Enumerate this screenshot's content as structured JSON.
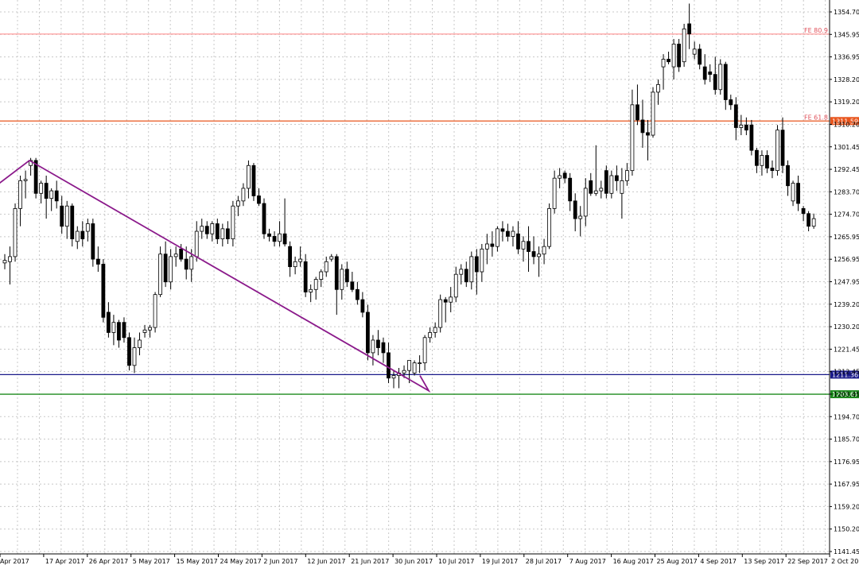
{
  "chart_data": {
    "type": "candlestick",
    "ylim": [
      1141.45,
      1358.0
    ],
    "grid": true,
    "y_ticks": [
      "1354.70",
      "1345.95",
      "1336.95",
      "1328.20",
      "1319.20",
      "1310.20",
      "1301.45",
      "1292.45",
      "1283.70",
      "1274.70",
      "1265.95",
      "1256.95",
      "1247.95",
      "1239.20",
      "1230.20",
      "1221.45",
      "1212.45",
      "1203.45",
      "1194.70",
      "1185.70",
      "1176.95",
      "1167.95",
      "1159.20",
      "1150.20",
      "1141.45"
    ],
    "x_labels": [
      "Apr 2017",
      "17 Apr 2017",
      "26 Apr 2017",
      "5 May 2017",
      "15 May 2017",
      "24 May 2017",
      "2 Jun 2017",
      "12 Jun 2017",
      "21 Jun 2017",
      "30 Jun 2017",
      "10 Jul 2017",
      "19 Jul 2017",
      "28 Jul 2017",
      "7 Aug 2017",
      "16 Aug 2017",
      "25 Aug 2017",
      "4 Sep 2017",
      "13 Sep 2017",
      "22 Sep 2017",
      "2 Oct 2017"
    ],
    "candles": [
      [
        1255.5,
        1259.0,
        1253.0,
        1256.5
      ],
      [
        1256.0,
        1262.0,
        1247.0,
        1258.0
      ],
      [
        1258.0,
        1279.0,
        1256.0,
        1277.0
      ],
      [
        1277.0,
        1290.0,
        1270.0,
        1288.0
      ],
      [
        1288.0,
        1292.0,
        1281.0,
        1288.5
      ],
      [
        1294.0,
        1297.0,
        1290.0,
        1296.0
      ],
      [
        1296.0,
        1297.0,
        1281.0,
        1283.0
      ],
      [
        1283.0,
        1288.0,
        1279.0,
        1287.0
      ],
      [
        1287.0,
        1290.0,
        1273.0,
        1281.0
      ],
      [
        1281.0,
        1285.0,
        1276.0,
        1284.0
      ],
      [
        1284.0,
        1288.0,
        1277.0,
        1280.0
      ],
      [
        1278.0,
        1282.0,
        1267.0,
        1270.0
      ],
      [
        1270.0,
        1280.0,
        1265.0,
        1278.0
      ],
      [
        1278.0,
        1279.0,
        1262.0,
        1265.0
      ],
      [
        1264.0,
        1270.0,
        1261.0,
        1268.0
      ],
      [
        1268.0,
        1272.0,
        1262.0,
        1265.0
      ],
      [
        1268.0,
        1273.0,
        1264.0,
        1271.0
      ],
      [
        1271.0,
        1273.0,
        1254.0,
        1257.0
      ],
      [
        1257.0,
        1262.0,
        1252.0,
        1255.0
      ],
      [
        1255.0,
        1257.0,
        1232.0,
        1234.0
      ],
      [
        1236.0,
        1240.0,
        1226.0,
        1228.0
      ],
      [
        1228.0,
        1235.0,
        1223.0,
        1232.0
      ],
      [
        1232.0,
        1233.0,
        1222.0,
        1225.0
      ],
      [
        1232.0,
        1234.0,
        1224.0,
        1226.0
      ],
      [
        1226.0,
        1228.0,
        1213.0,
        1215.0
      ],
      [
        1215.0,
        1226.0,
        1212.0,
        1222.0
      ],
      [
        1222.0,
        1228.0,
        1219.0,
        1225.0
      ],
      [
        1228.0,
        1231.0,
        1226.0,
        1229.0
      ],
      [
        1229.0,
        1231.0,
        1226.0,
        1230.0
      ],
      [
        1230.0,
        1244.0,
        1228.0,
        1243.0
      ],
      [
        1243.0,
        1262.0,
        1242.0,
        1259.0
      ],
      [
        1259.0,
        1264.0,
        1246.0,
        1248.0
      ],
      [
        1248.0,
        1261.0,
        1245.0,
        1258.0
      ],
      [
        1258.0,
        1262.0,
        1254.0,
        1259.0
      ],
      [
        1261.0,
        1263.0,
        1256.0,
        1257.0
      ],
      [
        1257.0,
        1262.0,
        1249.0,
        1253.0
      ],
      [
        1253.0,
        1261.0,
        1248.0,
        1258.0
      ],
      [
        1258.0,
        1272.0,
        1256.0,
        1268.0
      ],
      [
        1268.0,
        1273.0,
        1265.0,
        1270.0
      ],
      [
        1270.0,
        1272.0,
        1265.0,
        1267.0
      ],
      [
        1267.0,
        1272.0,
        1264.0,
        1271.0
      ],
      [
        1271.0,
        1273.0,
        1263.0,
        1265.0
      ],
      [
        1265.0,
        1271.0,
        1262.0,
        1269.0
      ],
      [
        1269.0,
        1272.0,
        1263.0,
        1265.0
      ],
      [
        1265.0,
        1280.0,
        1262.0,
        1278.0
      ],
      [
        1278.0,
        1282.0,
        1274.0,
        1280.0
      ],
      [
        1280.0,
        1287.0,
        1278.0,
        1285.0
      ],
      [
        1285.0,
        1296.0,
        1281.0,
        1294.0
      ],
      [
        1294.0,
        1295.0,
        1280.0,
        1282.0
      ],
      [
        1282.0,
        1285.0,
        1278.0,
        1279.0
      ],
      [
        1279.0,
        1281.0,
        1265.0,
        1267.0
      ],
      [
        1267.0,
        1269.0,
        1264.0,
        1266.0
      ],
      [
        1266.0,
        1268.0,
        1262.0,
        1264.0
      ],
      [
        1264.0,
        1272.0,
        1262.0,
        1267.0
      ],
      [
        1267.0,
        1281.0,
        1262.0,
        1263.0
      ],
      [
        1262.0,
        1264.0,
        1250.0,
        1254.0
      ],
      [
        1254.0,
        1258.0,
        1251.0,
        1256.0
      ],
      [
        1256.0,
        1262.0,
        1254.0,
        1257.0
      ],
      [
        1256.0,
        1259.0,
        1242.0,
        1244.0
      ],
      [
        1244.0,
        1247.0,
        1240.0,
        1245.0
      ],
      [
        1245.0,
        1250.0,
        1241.0,
        1249.0
      ],
      [
        1249.0,
        1253.0,
        1246.0,
        1252.0
      ],
      [
        1252.0,
        1258.0,
        1250.0,
        1256.0
      ],
      [
        1257.0,
        1259.0,
        1256.0,
        1258.0
      ],
      [
        1258.0,
        1259.0,
        1235.0,
        1245.0
      ],
      [
        1245.0,
        1255.0,
        1241.0,
        1253.0
      ],
      [
        1253.0,
        1256.0,
        1246.0,
        1248.0
      ],
      [
        1248.0,
        1252.0,
        1244.0,
        1245.0
      ],
      [
        1245.0,
        1248.0,
        1239.0,
        1241.0
      ],
      [
        1241.0,
        1244.0,
        1234.0,
        1236.0
      ],
      [
        1236.0,
        1239.0,
        1217.0,
        1220.0
      ],
      [
        1220.0,
        1227.0,
        1215.0,
        1225.0
      ],
      [
        1225.0,
        1229.0,
        1219.0,
        1222.0
      ],
      [
        1224.0,
        1226.0,
        1216.0,
        1220.0
      ],
      [
        1220.0,
        1224.0,
        1208.0,
        1210.0
      ],
      [
        1210.0,
        1213.0,
        1206.0,
        1211.0
      ],
      [
        1211.0,
        1214.0,
        1206.0,
        1212.0
      ],
      [
        1212.0,
        1215.0,
        1210.0,
        1213.0
      ],
      [
        1213.0,
        1217.0,
        1208.0,
        1217.0
      ],
      [
        1212.0,
        1217.0,
        1211.0,
        1216.0
      ],
      [
        1216.0,
        1219.0,
        1212.0,
        1216.0
      ],
      [
        1216.0,
        1227.0,
        1213.0,
        1226.0
      ],
      [
        1226.0,
        1230.0,
        1224.0,
        1228.0
      ],
      [
        1228.0,
        1232.0,
        1226.0,
        1230.0
      ],
      [
        1230.0,
        1243.0,
        1228.0,
        1241.0
      ],
      [
        1241.0,
        1242.0,
        1232.0,
        1240.0
      ],
      [
        1240.0,
        1246.0,
        1236.0,
        1242.0
      ],
      [
        1242.0,
        1254.0,
        1240.0,
        1251.0
      ],
      [
        1251.0,
        1255.0,
        1247.0,
        1253.0
      ],
      [
        1253.0,
        1256.0,
        1246.0,
        1248.0
      ],
      [
        1248.0,
        1260.0,
        1245.0,
        1258.0
      ],
      [
        1258.0,
        1261.0,
        1243.0,
        1252.0
      ],
      [
        1252.0,
        1263.0,
        1248.0,
        1261.0
      ],
      [
        1261.0,
        1267.0,
        1255.0,
        1263.0
      ],
      [
        1263.0,
        1268.0,
        1258.0,
        1262.0
      ],
      [
        1262.0,
        1270.0,
        1260.0,
        1269.0
      ],
      [
        1269.0,
        1272.0,
        1264.0,
        1268.0
      ],
      [
        1268.0,
        1271.0,
        1264.0,
        1266.0
      ],
      [
        1266.0,
        1270.0,
        1262.0,
        1268.0
      ],
      [
        1267.0,
        1272.0,
        1259.0,
        1261.0
      ],
      [
        1261.0,
        1266.0,
        1256.0,
        1264.0
      ],
      [
        1264.0,
        1270.0,
        1252.0,
        1260.0
      ],
      [
        1260.0,
        1266.0,
        1255.0,
        1258.0
      ],
      [
        1258.0,
        1262.0,
        1250.0,
        1259.0
      ],
      [
        1259.0,
        1265.0,
        1255.0,
        1262.0
      ],
      [
        1262.0,
        1279.0,
        1261.0,
        1277.0
      ],
      [
        1277.0,
        1292.0,
        1275.0,
        1289.0
      ],
      [
        1289.0,
        1293.0,
        1285.0,
        1290.0
      ],
      [
        1291.0,
        1292.0,
        1287.0,
        1289.0
      ],
      [
        1289.0,
        1291.0,
        1276.0,
        1280.0
      ],
      [
        1280.0,
        1283.0,
        1268.0,
        1273.0
      ],
      [
        1273.0,
        1278.0,
        1266.0,
        1274.0
      ],
      [
        1274.0,
        1289.0,
        1270.0,
        1285.0
      ],
      [
        1288.0,
        1291.0,
        1282.0,
        1283.0
      ],
      [
        1283.0,
        1302.0,
        1282.0,
        1284.0
      ],
      [
        1284.0,
        1288.0,
        1281.0,
        1285.0
      ],
      [
        1292.0,
        1294.0,
        1281.0,
        1283.0
      ],
      [
        1283.0,
        1292.0,
        1281.0,
        1290.0
      ],
      [
        1290.0,
        1294.0,
        1284.0,
        1288.0
      ],
      [
        1283.0,
        1293.0,
        1273.0,
        1288.0
      ],
      [
        1288.0,
        1295.0,
        1286.0,
        1292.0
      ],
      [
        1292.0,
        1324.0,
        1290.0,
        1318.0
      ],
      [
        1318.0,
        1326.0,
        1310.0,
        1312.0
      ],
      [
        1312.0,
        1320.0,
        1301.0,
        1307.0
      ],
      [
        1307.0,
        1312.0,
        1296.0,
        1306.0
      ],
      [
        1306.0,
        1325.0,
        1305.0,
        1323.0
      ],
      [
        1323.0,
        1328.0,
        1318.0,
        1326.0
      ],
      [
        1333.0,
        1338.0,
        1324.0,
        1336.0
      ],
      [
        1336.0,
        1339.0,
        1334.0,
        1335.0
      ],
      [
        1333.0,
        1344.0,
        1328.0,
        1342.0
      ],
      [
        1342.0,
        1344.0,
        1331.0,
        1333.0
      ],
      [
        1335.0,
        1350.0,
        1333.0,
        1348.0
      ],
      [
        1350.0,
        1358.0,
        1340.0,
        1346.0
      ],
      [
        1338.0,
        1343.0,
        1336.0,
        1340.0
      ],
      [
        1340.0,
        1342.0,
        1332.0,
        1334.0
      ],
      [
        1333.0,
        1338.0,
        1326.0,
        1328.0
      ],
      [
        1331.0,
        1334.0,
        1327.0,
        1330.0
      ],
      [
        1330.0,
        1337.0,
        1322.0,
        1324.0
      ],
      [
        1324.0,
        1336.0,
        1322.0,
        1334.0
      ],
      [
        1334.0,
        1335.0,
        1316.0,
        1320.0
      ],
      [
        1320.0,
        1322.0,
        1316.0,
        1318.0
      ],
      [
        1318.0,
        1321.0,
        1304.0,
        1309.0
      ],
      [
        1309.0,
        1314.0,
        1306.0,
        1310.0
      ],
      [
        1310.0,
        1313.0,
        1306.0,
        1308.0
      ],
      [
        1310.0,
        1312.0,
        1298.0,
        1300.0
      ],
      [
        1300.0,
        1301.0,
        1291.0,
        1294.0
      ],
      [
        1294.0,
        1300.0,
        1290.0,
        1298.0
      ],
      [
        1298.0,
        1300.0,
        1291.0,
        1293.0
      ],
      [
        1293.0,
        1296.0,
        1289.0,
        1292.0
      ],
      [
        1292.0,
        1310.0,
        1290.0,
        1308.0
      ],
      [
        1308.0,
        1313.0,
        1291.0,
        1294.0
      ],
      [
        1294.0,
        1296.0,
        1282.0,
        1286.0
      ],
      [
        1280.0,
        1288.0,
        1278.0,
        1287.0
      ],
      [
        1287.0,
        1290.0,
        1276.0,
        1279.0
      ],
      [
        1277.0,
        1278.0,
        1272.0,
        1275.0
      ],
      [
        1275.0,
        1276.0,
        1268.0,
        1270.0
      ],
      [
        1270.0,
        1275.0,
        1269.0,
        1273.0
      ]
    ],
    "horizontal_lines": [
      {
        "label": "FE 80.9",
        "price": 1345.95,
        "color": "#ff8080",
        "tag": ""
      },
      {
        "label": "FE 61.8",
        "price": 1311.59,
        "color": "#e8561e",
        "tag": "1311.59"
      },
      {
        "label": "",
        "price": 1211.36,
        "color": "#1a1a8a",
        "tag": "1211.36"
      },
      {
        "label": "",
        "price": 1203.61,
        "color": "#1d8a1d",
        "tag": "1203.61"
      }
    ],
    "trendline": {
      "color": "#8b1a8b",
      "points": [
        [
          1286.0,
          -5
        ],
        [
          1296.0,
          37
        ],
        [
          1205.0,
          539
        ],
        [
          1211.0,
          528
        ]
      ]
    }
  },
  "colors": {
    "background": "#ffffff",
    "grid": "#c8c8c8",
    "candle_bull": "#ffffff",
    "candle_bear": "#000000",
    "candle_stroke": "#000000"
  }
}
